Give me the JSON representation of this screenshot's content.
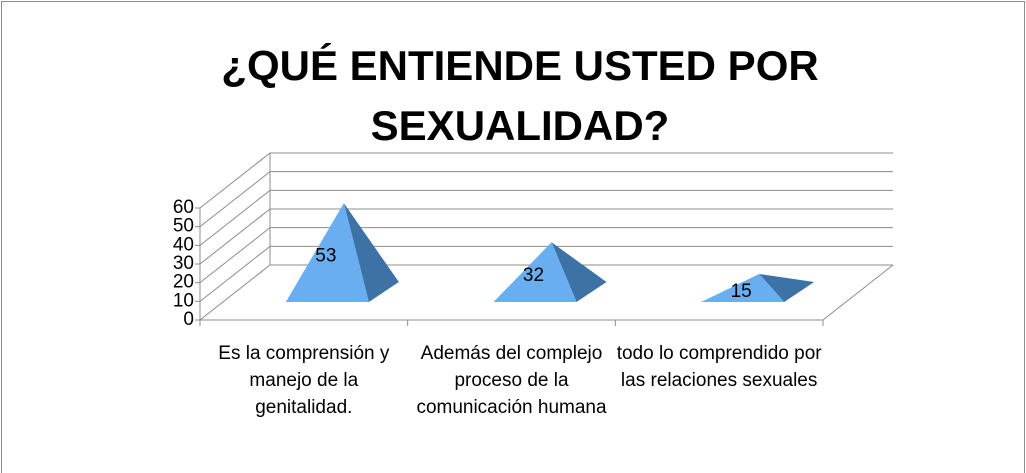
{
  "chart_data": {
    "type": "pyramid3d",
    "title": "¿QUÉ ENTIENDE USTED POR SEXUALIDAD?",
    "categories": [
      "Es la comprensión y manejo de la genitalidad.",
      "Además del complejo proceso de la comunicación humana",
      "todo lo comprendido por las relaciones sexuales"
    ],
    "values": [
      53,
      32,
      15
    ],
    "color": "#6aaef2",
    "side_color": "#3d72a6",
    "ylim": [
      0,
      60
    ],
    "yticks": [
      0,
      10,
      20,
      30,
      40,
      50,
      60
    ],
    "grid": true
  }
}
